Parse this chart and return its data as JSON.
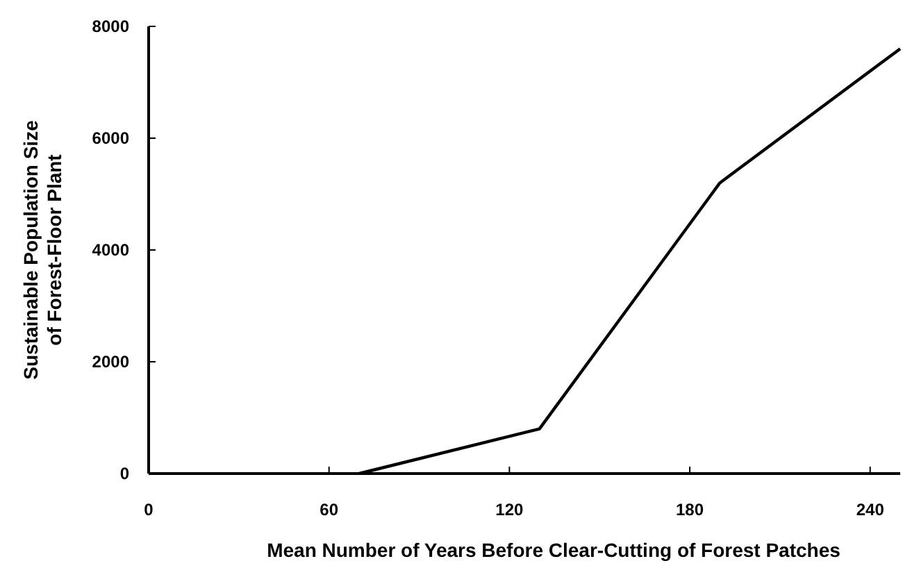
{
  "chart_data": {
    "type": "line",
    "xlabel": "Mean Number of Years Before Clear-Cutting of Forest Patches",
    "ylabel": "Sustainable Population Size\nof Forest-Floor Plant",
    "x": [
      70,
      130,
      190,
      250
    ],
    "series": [
      {
        "color": "#000000",
        "values": [
          0,
          800,
          5200,
          7600
        ]
      }
    ],
    "xlim": [
      0,
      250
    ],
    "xticks": [
      0,
      60,
      120,
      180,
      240
    ],
    "ylim": [
      0,
      8000
    ],
    "yticks": [
      0,
      2000,
      4000,
      6000,
      8000
    ],
    "grid": false,
    "marker": "none",
    "line_style": "solid"
  }
}
